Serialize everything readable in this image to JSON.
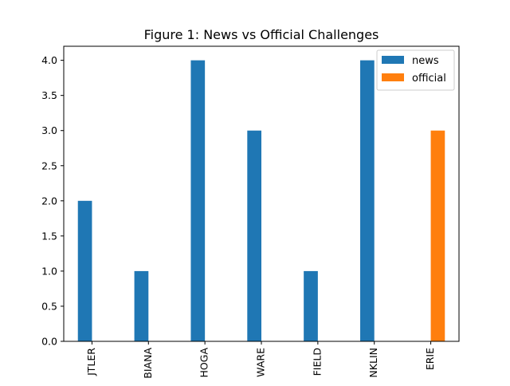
{
  "chart_data": {
    "type": "bar",
    "title": "Figure 1: News vs Official Challenges",
    "xlabel": "",
    "ylabel": "",
    "categories": [
      "JTLER",
      "BIANA",
      "HOGA",
      "WARE",
      "FIELD",
      "NKLIN",
      "ERIE"
    ],
    "series": [
      {
        "name": "news",
        "color": "#1f77b4",
        "values": [
          2,
          1,
          4,
          3,
          1,
          4,
          0
        ]
      },
      {
        "name": "official",
        "color": "#ff7f0e",
        "values": [
          0,
          0,
          0,
          0,
          0,
          0,
          3
        ]
      }
    ],
    "ylim": [
      0,
      4.2
    ],
    "yticks": [
      "0.0",
      "0.5",
      "1.0",
      "1.5",
      "2.0",
      "2.5",
      "3.0",
      "3.5",
      "4.0"
    ],
    "grid": false,
    "legend_position": "top-right"
  }
}
